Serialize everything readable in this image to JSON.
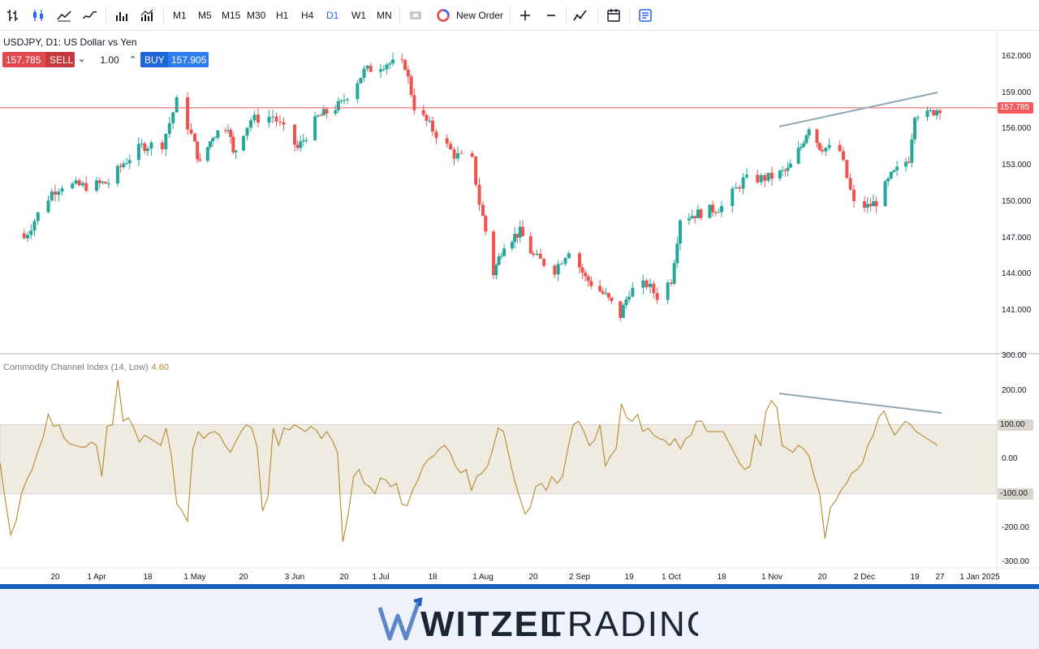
{
  "toolbar": {
    "timeframes": [
      "M1",
      "M5",
      "M15",
      "M30",
      "H1",
      "H4",
      "D1",
      "W1",
      "MN"
    ],
    "active_timeframe": "D1",
    "new_order_label": "New Order"
  },
  "symbol": {
    "title": "USDJPY, D1: US Dollar vs Yen"
  },
  "trade_panel": {
    "sell_price": "157.785",
    "sell_label": "SELL",
    "quantity": "1.00",
    "buy_label": "BUY",
    "buy_price": "157.905"
  },
  "indicator": {
    "title": "Commodity Channel Index (14, Low)",
    "value": "4.60"
  },
  "colors": {
    "up": "#26a69a",
    "down": "#ef5350",
    "cci_line": "#b38a2e",
    "band_fill": "#efebe2",
    "trendline": "#8fa7b3",
    "price_line": "#f05a5e",
    "footer_accent": "#1b5fbd"
  },
  "brand": {
    "name_bold": "WITZEL",
    "name_light": "TRADING"
  },
  "chart_data": [
    {
      "type": "candlestick",
      "title": "USDJPY, D1: US Dollar vs Yen",
      "y_axis_ticks": [
        "162.000",
        "159.000",
        "156.000",
        "153.000",
        "150.000",
        "147.000",
        "144.000",
        "141.000"
      ],
      "ylim": [
        138.0,
        164.4
      ],
      "current_price": "157.785",
      "x_axis_ticks": [
        "20",
        "1 Apr",
        "18",
        "1 May",
        "20",
        "3 Jun",
        "20",
        "1 Jul",
        "18",
        "1 Aug",
        "20",
        "2 Sep",
        "19",
        "1 Oct",
        "18",
        "1 Nov",
        "20",
        "2 Dec",
        "19",
        "27",
        "1 Jan 2025"
      ],
      "close_path": [
        [
          "2024-03-11",
          147.0
        ],
        [
          "2024-03-15",
          149.0
        ],
        [
          "2024-03-19",
          150.8
        ],
        [
          "2024-03-22",
          151.4
        ],
        [
          "2024-03-29",
          151.3
        ],
        [
          "2024-04-05",
          151.6
        ],
        [
          "2024-04-10",
          153.2
        ],
        [
          "2024-04-16",
          154.6
        ],
        [
          "2024-04-22",
          154.8
        ],
        [
          "2024-04-26",
          158.3
        ],
        [
          "2024-04-29",
          156.3
        ],
        [
          "2024-05-03",
          153.1
        ],
        [
          "2024-05-08",
          155.5
        ],
        [
          "2024-05-14",
          156.4
        ],
        [
          "2024-05-16",
          153.9
        ],
        [
          "2024-05-22",
          156.8
        ],
        [
          "2024-05-28",
          157.1
        ],
        [
          "2024-06-04",
          154.4
        ],
        [
          "2024-06-11",
          157.0
        ],
        [
          "2024-06-14",
          157.4
        ],
        [
          "2024-06-19",
          158.1
        ],
        [
          "2024-06-26",
          160.8
        ],
        [
          "2024-07-03",
          161.5
        ],
        [
          "2024-07-09",
          161.3
        ],
        [
          "2024-07-12",
          157.9
        ],
        [
          "2024-07-17",
          156.3
        ],
        [
          "2024-07-24",
          153.9
        ],
        [
          "2024-07-29",
          153.4
        ],
        [
          "2024-07-31",
          149.9
        ],
        [
          "2024-08-05",
          144.1
        ],
        [
          "2024-08-09",
          146.6
        ],
        [
          "2024-08-15",
          147.5
        ],
        [
          "2024-08-20",
          145.5
        ],
        [
          "2024-08-26",
          144.4
        ],
        [
          "2024-08-30",
          146.1
        ],
        [
          "2024-09-04",
          143.7
        ],
        [
          "2024-09-11",
          142.2
        ],
        [
          "2024-09-16",
          140.6
        ],
        [
          "2024-09-19",
          142.6
        ],
        [
          "2024-09-24",
          143.2
        ],
        [
          "2024-09-27",
          142.2
        ],
        [
          "2024-10-01",
          143.6
        ],
        [
          "2024-10-04",
          148.7
        ],
        [
          "2024-10-11",
          149.1
        ],
        [
          "2024-10-18",
          149.6
        ],
        [
          "2024-10-24",
          151.8
        ],
        [
          "2024-10-31",
          152.0
        ],
        [
          "2024-11-07",
          152.6
        ],
        [
          "2024-11-12",
          154.6
        ],
        [
          "2024-11-15",
          156.3
        ],
        [
          "2024-11-19",
          154.6
        ],
        [
          "2024-11-25",
          154.2
        ],
        [
          "2024-11-29",
          149.8
        ],
        [
          "2024-12-03",
          149.6
        ],
        [
          "2024-12-06",
          150.0
        ],
        [
          "2024-12-11",
          152.1
        ],
        [
          "2024-12-17",
          153.6
        ],
        [
          "2024-12-19",
          157.4
        ],
        [
          "2024-12-23",
          157.2
        ],
        [
          "2024-12-27",
          157.8
        ]
      ]
    },
    {
      "type": "line",
      "title": "Commodity Channel Index (14, Low)",
      "y_axis_ticks": [
        "300.00",
        "200.00",
        "100.00",
        "0.00",
        "-100.00",
        "-200.00",
        "-300.00"
      ],
      "ylim": [
        -310,
        305
      ],
      "bands": [
        100,
        -100
      ],
      "last_value": "4.60",
      "values": [
        -10,
        -120,
        -220,
        -180,
        -100,
        -60,
        -30,
        20,
        60,
        130,
        95,
        100,
        60,
        45,
        40,
        35,
        35,
        50,
        40,
        -50,
        95,
        100,
        230,
        110,
        120,
        90,
        50,
        70,
        60,
        50,
        40,
        90,
        10,
        -130,
        -150,
        -180,
        30,
        80,
        60,
        75,
        80,
        70,
        40,
        20,
        50,
        80,
        100,
        90,
        35,
        -150,
        -110,
        90,
        40,
        90,
        85,
        100,
        90,
        80,
        95,
        85,
        60,
        80,
        55,
        20,
        -240,
        -160,
        -50,
        -30,
        -70,
        -80,
        -100,
        -55,
        -60,
        -80,
        -70,
        -130,
        -135,
        -90,
        -60,
        -20,
        0,
        10,
        30,
        40,
        20,
        -20,
        -40,
        -30,
        -90,
        -50,
        -40,
        -20,
        30,
        90,
        80,
        10,
        -60,
        -110,
        -160,
        -140,
        -80,
        -70,
        -90,
        -50,
        -70,
        -50,
        30,
        100,
        110,
        80,
        40,
        55,
        100,
        -20,
        10,
        30,
        160,
        120,
        110,
        130,
        80,
        90,
        70,
        60,
        55,
        40,
        60,
        30,
        60,
        70,
        110,
        110,
        80,
        80,
        80,
        80,
        50,
        20,
        -10,
        -30,
        -20,
        70,
        40,
        140,
        170,
        150,
        40,
        30,
        20,
        40,
        30,
        10,
        -50,
        -100,
        -230,
        -140,
        -120,
        -90,
        -70,
        -40,
        -30,
        -10,
        40,
        70,
        120,
        140,
        100,
        70,
        90,
        110,
        100,
        80,
        70,
        60,
        50,
        40
      ]
    }
  ]
}
